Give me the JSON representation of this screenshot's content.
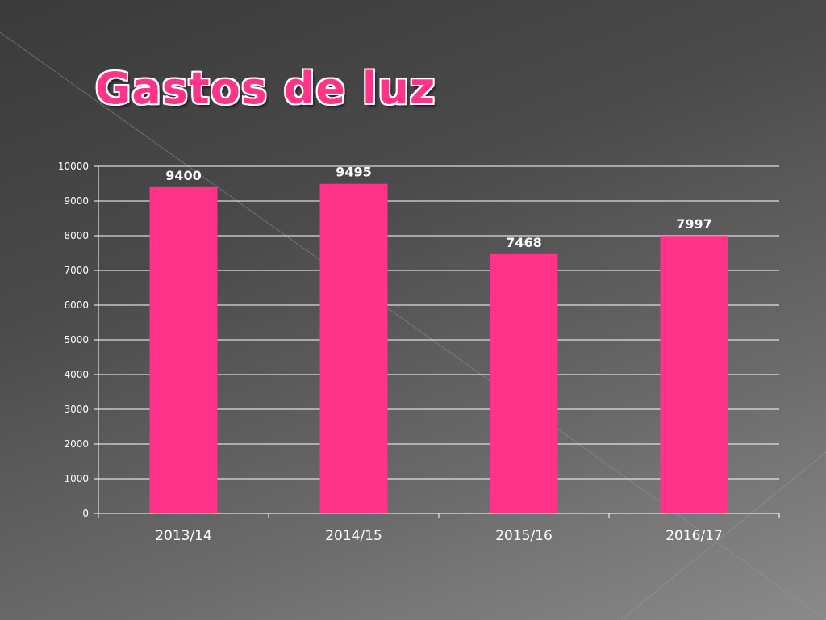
{
  "slide": {
    "title": "Gastos de luz"
  },
  "colors": {
    "bar": "#ff3388",
    "grid": "#ffffff"
  },
  "chart_data": {
    "type": "bar",
    "title": "",
    "xlabel": "",
    "ylabel": "",
    "categories": [
      "2013/14",
      "2014/15",
      "2015/16",
      "2016/17"
    ],
    "values": [
      9400,
      9495,
      7468,
      7997
    ],
    "data_labels": [
      "9400",
      "9495",
      "7468",
      "7997"
    ],
    "ylim": [
      0,
      10000
    ],
    "yticks": [
      0,
      1000,
      2000,
      3000,
      4000,
      5000,
      6000,
      7000,
      8000,
      9000,
      10000
    ],
    "grid": true,
    "legend": "none"
  }
}
